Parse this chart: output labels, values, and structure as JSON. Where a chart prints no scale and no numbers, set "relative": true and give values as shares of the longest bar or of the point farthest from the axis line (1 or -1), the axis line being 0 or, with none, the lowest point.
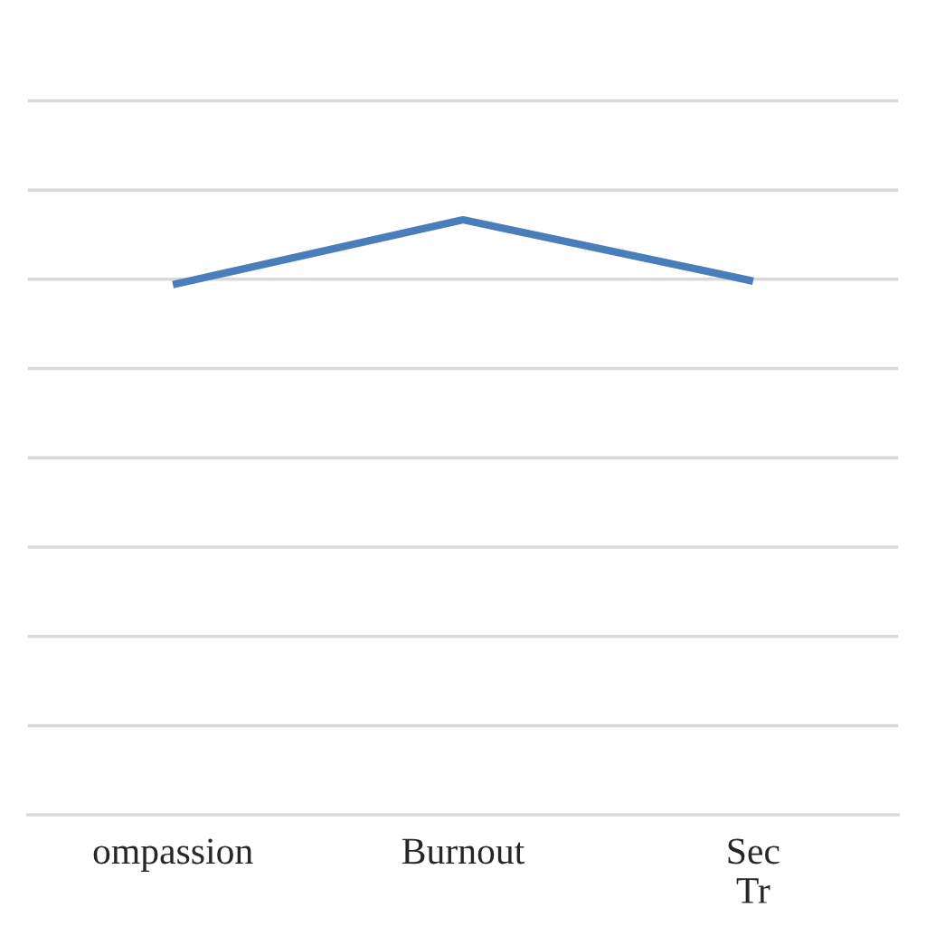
{
  "chart_data": {
    "type": "line",
    "categories": [
      "ompassion",
      "Burnout",
      "Sec\nTr"
    ],
    "series": [
      {
        "color": "#4a7ebb",
        "values": [
          0.891,
          1,
          0.897
        ]
      }
    ],
    "relative": true,
    "grid": "y",
    "marker": "none",
    "line_style": "solid"
  }
}
